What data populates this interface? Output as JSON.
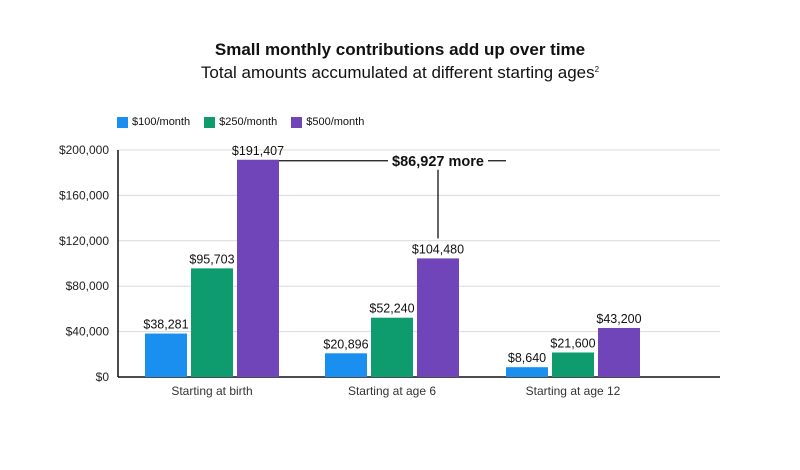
{
  "chart_data": {
    "type": "bar",
    "title": "Small monthly contributions add up over time",
    "subtitle": "Total amounts accumulated at different starting ages",
    "subtitle_footnote": "2",
    "categories": [
      "Starting at birth",
      "Starting at age 6",
      "Starting at age 12"
    ],
    "series": [
      {
        "name": "$100/month",
        "color": "#1a8ff0",
        "values": [
          38281,
          20896,
          8640
        ],
        "labels": [
          "$38,281",
          "$20,896",
          "$8,640"
        ]
      },
      {
        "name": "$250/month",
        "color": "#0e9b6e",
        "values": [
          95703,
          52240,
          21600
        ],
        "labels": [
          "$95,703",
          "$52,240",
          "$21,600"
        ]
      },
      {
        "name": "$500/month",
        "color": "#6f45b9",
        "values": [
          191407,
          104480,
          43200
        ],
        "labels": [
          "$191,407",
          "$104,480",
          "$43,200"
        ]
      }
    ],
    "ylim": [
      0,
      200000
    ],
    "yticks": [
      0,
      40000,
      80000,
      120000,
      160000,
      200000
    ],
    "ytick_labels": [
      "$0",
      "$40,000",
      "$80,000",
      "$120,000",
      "$160,000",
      "$200,000"
    ],
    "xlabel": "",
    "ylabel": "",
    "grid": true,
    "legend_position": "top-left",
    "annotation": {
      "text": "$86,927 more"
    }
  }
}
